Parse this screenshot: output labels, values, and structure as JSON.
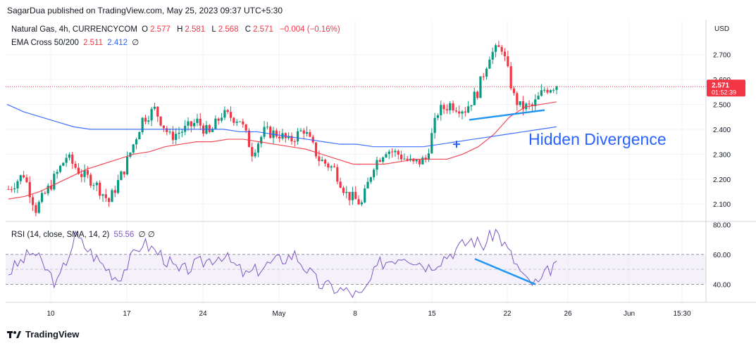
{
  "publisher": "SagarDua published on TradingView.com, May 25, 2023 09:37 UTC+5:30",
  "footer_brand": "TradingView",
  "legend": {
    "symbol": "Natural Gas, 4h, CURRENCYCOM",
    "o_label": "O",
    "o": "2.577",
    "h_label": "H",
    "h": "2.581",
    "l_label": "L",
    "l": "2.568",
    "c_label": "C",
    "c": "2.571",
    "change": "−0.004 (−0.16%)",
    "ema_label": "EMA Cross 50/200",
    "ema50": "2.511",
    "ema200": "2.412",
    "ema_extra": "∅",
    "rsi_label": "RSI (14, close, SMA, 14, 2)",
    "rsi": "55.56",
    "rsi_extra": "∅ ∅"
  },
  "annotation": "Hidden Divergence",
  "colors": {
    "up": "#089981",
    "down": "#f23645",
    "ema50": "#f23645",
    "ema200": "#2962ff",
    "rsi": "#7e57c2",
    "band": "#ede7f6",
    "divergence": "#2196f3",
    "price_tag": "#f23645"
  },
  "chart_data": [
    {
      "type": "candlestick",
      "currency": "USD",
      "y_axis_ticks": [
        "2.100",
        "2.200",
        "2.300",
        "2.400",
        "2.500",
        "2.600",
        "2.700"
      ],
      "ylim": [
        2.03,
        2.84
      ],
      "x_tick_labels": [
        "10",
        "17",
        "24",
        "May",
        "8",
        "15",
        "22",
        "26",
        "Jun",
        "15:30"
      ],
      "last_price": "2.571",
      "countdown": "01:52:39",
      "series": [
        {
          "name": "EMA 50",
          "values": [
            2.12,
            2.13,
            2.15,
            2.18,
            2.21,
            2.24,
            2.26,
            2.28,
            2.3,
            2.31,
            2.33,
            2.34,
            2.35,
            2.35,
            2.36,
            2.36,
            2.35,
            2.34,
            2.33,
            2.32,
            2.3,
            2.28,
            2.26,
            2.26,
            2.26,
            2.27,
            2.28,
            2.28,
            2.28,
            2.3,
            2.33,
            2.38,
            2.45,
            2.49,
            2.5,
            2.51
          ]
        },
        {
          "name": "EMA 200",
          "values": [
            2.5,
            2.47,
            2.45,
            2.43,
            2.41,
            2.4,
            2.4,
            2.4,
            2.4,
            2.4,
            2.4,
            2.4,
            2.4,
            2.4,
            2.39,
            2.39,
            2.38,
            2.37,
            2.36,
            2.35,
            2.34,
            2.34,
            2.33,
            2.33,
            2.33,
            2.33,
            2.34,
            2.35,
            2.36,
            2.37,
            2.38,
            2.39,
            2.4,
            2.41
          ]
        }
      ],
      "annotation": "Hidden Divergence"
    },
    {
      "type": "line",
      "name": "RSI (14, close, SMA, 14, 2)",
      "y_axis_ticks": [
        "40.00",
        "60.00",
        "80.00"
      ],
      "ylim": [
        28,
        82
      ],
      "levels": [
        40,
        60
      ],
      "last_value": 55.56
    }
  ]
}
